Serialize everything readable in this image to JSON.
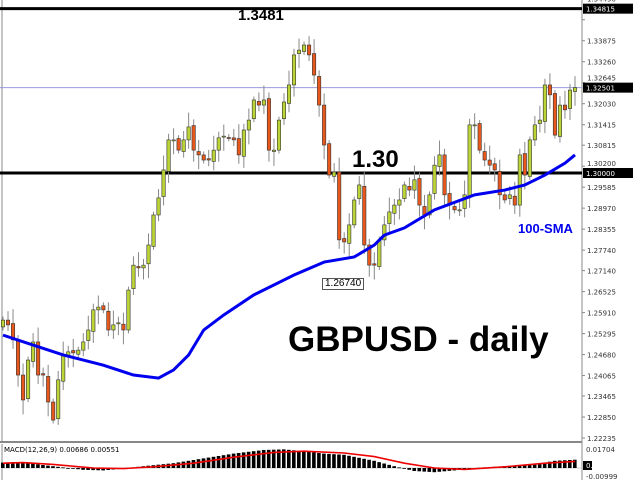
{
  "chart_data": {
    "type": "candlestick",
    "title": "GBPUSD - daily",
    "instrument": "GBPUSD",
    "timeframe": "daily",
    "ylim": [
      1.22235,
      1.35
    ],
    "y_ticks": [
      "1.34490",
      "1.33875",
      "1.33260",
      "1.32645",
      "1.32030",
      "1.31415",
      "1.30815",
      "1.30200",
      "1.29585",
      "1.28970",
      "1.28355",
      "1.27740",
      "1.27140",
      "1.26525",
      "1.25910",
      "1.25295",
      "1.24680",
      "1.24065",
      "1.23465",
      "1.22850",
      "1.22235"
    ],
    "highlighted_levels": [
      {
        "value": "1.34815",
        "color": "#000000",
        "line": "thick"
      },
      {
        "value": "1.30000",
        "color": "#000000",
        "line": "thick"
      },
      {
        "value": "1.32501",
        "color": "#9999dd",
        "line": "thin"
      }
    ],
    "annotations": {
      "high": "1.3481",
      "level": "1.30",
      "sma_label": "100-SMA",
      "low": "1.26740"
    },
    "closes": [
      1.2569,
      1.2555,
      1.2511,
      1.2408,
      1.2335,
      1.2452,
      1.2505,
      1.2408,
      1.2408,
      1.2329,
      1.2276,
      1.2394,
      1.2464,
      1.2476,
      1.2473,
      1.2481,
      1.2505,
      1.254,
      1.2599,
      1.2607,
      1.2599,
      1.254,
      1.2555,
      1.2561,
      1.254,
      1.2657,
      1.273,
      1.2722,
      1.273,
      1.2789,
      1.2877,
      1.2927,
      1.3009,
      1.3097,
      1.3097,
      1.3067,
      1.3097,
      1.3135,
      1.3067,
      1.3053,
      1.3038,
      1.3038,
      1.3067,
      1.3103,
      1.3108,
      1.3103,
      1.3097,
      1.3053,
      1.3126,
      1.3155,
      1.3214,
      1.3199,
      1.3214,
      1.3067,
      1.3067,
      1.3155,
      1.3208,
      1.3258,
      1.3346,
      1.336,
      1.3375,
      1.3346,
      1.3287,
      1.3199,
      1.3082,
      1.2994,
      1.3003,
      1.2804,
      1.2798,
      1.2848,
      1.2921,
      1.2965,
      1.2789,
      1.273,
      1.273,
      1.2804,
      1.2848,
      1.2886,
      1.2906,
      1.2921,
      1.2965,
      1.295,
      1.298,
      1.2906,
      1.2877,
      1.2936,
      1.3023,
      1.3053,
      1.2936,
      1.2906,
      1.2892,
      1.2892,
      1.2936,
      1.3141,
      1.3141,
      1.3067,
      1.3038,
      1.3023,
      1.3009,
      1.2936,
      1.2921,
      1.2936,
      1.2906,
      1.3053,
      1.2994,
      1.3097,
      1.3141,
      1.3155,
      1.3258,
      1.3229,
      1.3111,
      1.3199,
      1.3185,
      1.3243,
      1.325
    ],
    "sma_100": {
      "name": "100-SMA",
      "color": "#0000ee",
      "points": [
        [
          0,
          1.2525
        ],
        [
          6,
          1.2496
        ],
        [
          12,
          1.2467
        ],
        [
          20,
          1.2437
        ],
        [
          26,
          1.2408
        ],
        [
          31,
          1.2399
        ],
        [
          34,
          1.2423
        ],
        [
          37,
          1.2467
        ],
        [
          40,
          1.254
        ],
        [
          44,
          1.2584
        ],
        [
          50,
          1.2643
        ],
        [
          58,
          1.2701
        ],
        [
          64,
          1.2739
        ],
        [
          70,
          1.2754
        ],
        [
          74,
          1.2789
        ],
        [
          76,
          1.2818
        ],
        [
          80,
          1.2839
        ],
        [
          86,
          1.2892
        ],
        [
          94,
          1.2936
        ],
        [
          100,
          1.295
        ],
        [
          104,
          1.2965
        ],
        [
          108,
          1.2994
        ],
        [
          112,
          1.3029
        ],
        [
          114,
          1.3053
        ]
      ]
    },
    "macd": {
      "label": "MACD(12,26,9) 0.00686 0.00551",
      "ticks": [
        "0.01704",
        "0.00",
        "-0.00999"
      ],
      "histogram_points": [
        [
          0,
          0.0045
        ],
        [
          4,
          0.005
        ],
        [
          8,
          0.0025
        ],
        [
          12,
          0.0005
        ],
        [
          16,
          -0.0015
        ],
        [
          20,
          -0.002
        ],
        [
          24,
          -0.0005
        ],
        [
          28,
          0.0015
        ],
        [
          34,
          0.004
        ],
        [
          40,
          0.008
        ],
        [
          46,
          0.012
        ],
        [
          52,
          0.015
        ],
        [
          56,
          0.0155
        ],
        [
          60,
          0.014
        ],
        [
          64,
          0.012
        ],
        [
          68,
          0.011
        ],
        [
          74,
          0.006
        ],
        [
          78,
          0.0015
        ],
        [
          82,
          -0.0025
        ],
        [
          86,
          -0.0035
        ],
        [
          90,
          -0.002
        ],
        [
          94,
          0.0
        ],
        [
          100,
          0.0015
        ],
        [
          106,
          0.003
        ],
        [
          110,
          0.006
        ],
        [
          114,
          0.0069
        ]
      ],
      "signal_points": [
        [
          0,
          0.004
        ],
        [
          4,
          0.0045
        ],
        [
          10,
          0.003
        ],
        [
          18,
          0.0
        ],
        [
          24,
          -0.0005
        ],
        [
          30,
          0.001
        ],
        [
          38,
          0.004
        ],
        [
          46,
          0.009
        ],
        [
          54,
          0.013
        ],
        [
          60,
          0.014
        ],
        [
          68,
          0.0125
        ],
        [
          74,
          0.0095
        ],
        [
          80,
          0.004
        ],
        [
          86,
          0.0
        ],
        [
          92,
          -0.0012
        ],
        [
          100,
          0.001
        ],
        [
          108,
          0.004
        ],
        [
          114,
          0.0055
        ]
      ]
    }
  }
}
